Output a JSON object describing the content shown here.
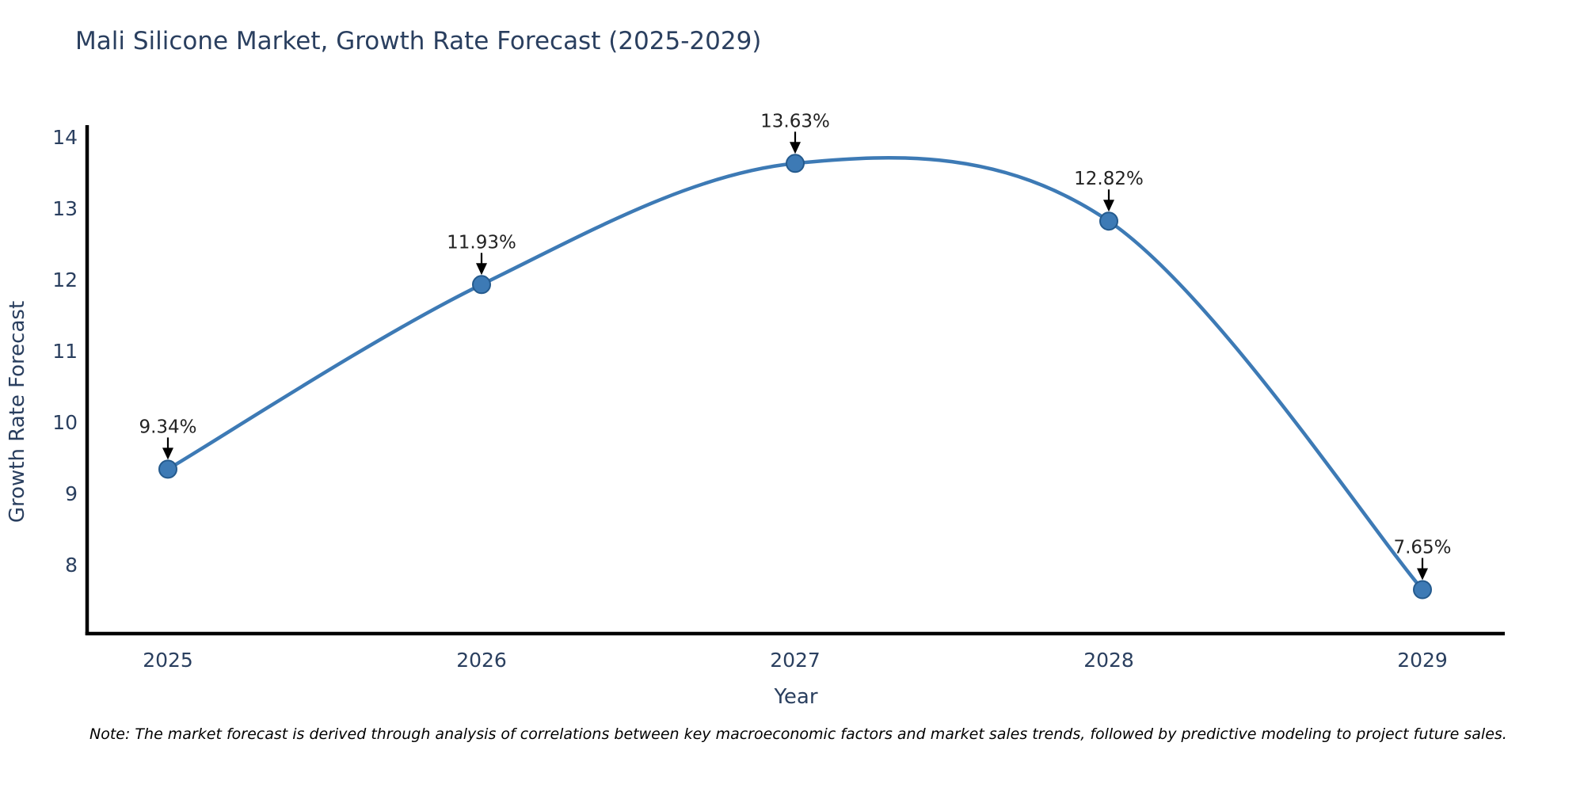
{
  "note": {
    "text": "Note: The market forecast is derived through analysis of correlations between key macroeconomic factors and market sales trends, followed by predictive modeling to project future sales."
  },
  "chart_data": {
    "type": "line",
    "line_shape": "spline",
    "title": "Mali Silicone Market, Growth Rate Forecast (2025-2029)",
    "xlabel": "Year",
    "ylabel": "Growth Rate Forecast",
    "categories": [
      "2025",
      "2026",
      "2027",
      "2028",
      "2029"
    ],
    "values": [
      9.34,
      11.93,
      13.63,
      12.82,
      7.65
    ],
    "point_labels": [
      "9.34%",
      "11.93%",
      "13.63%",
      "12.82%",
      "7.65%"
    ],
    "yticks": [
      8,
      9,
      10,
      11,
      12,
      13,
      14
    ],
    "ylim": [
      7.0,
      14.17
    ],
    "grid": false,
    "legend": "none",
    "annotation_arrows": "down",
    "colors": {
      "line": "#3d7ab5",
      "marker": "#3d7ab5",
      "marker_edge": "#245a8d",
      "axis": "#000000",
      "text": "#2a3f5f",
      "annotation": "#222222"
    }
  }
}
